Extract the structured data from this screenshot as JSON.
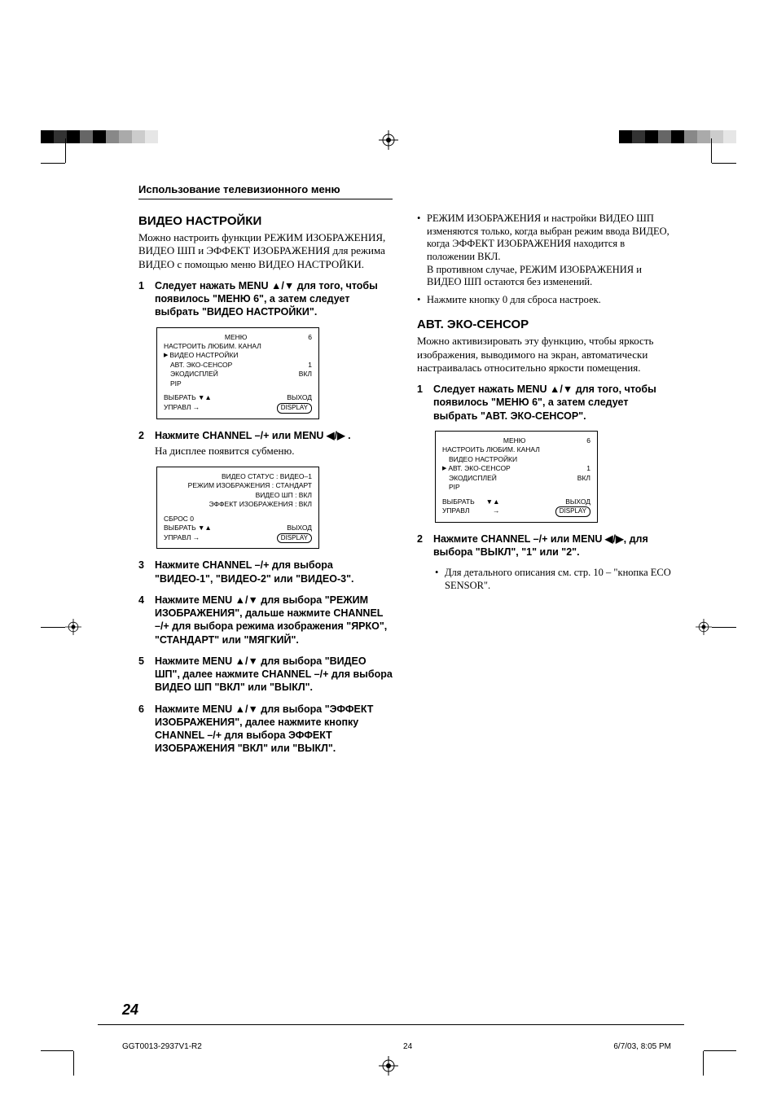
{
  "print_marks": {
    "left_bars": [
      "#000000",
      "#333333",
      "#000000",
      "#666666",
      "#000000",
      "#888888",
      "#aaaaaa",
      "#cccccc",
      "#e6e6e6"
    ],
    "right_bars": [
      "#000000",
      "#333333",
      "#000000",
      "#666666",
      "#000000",
      "#888888",
      "#aaaaaa",
      "#cccccc",
      "#e6e6e6"
    ]
  },
  "header": "Использование телевизионного меню",
  "left_col": {
    "heading": "ВИДЕО НАСТРОЙКИ",
    "intro": "Можно настроить функции РЕЖИМ ИЗОБРАЖЕНИЯ, ВИДЕО ШП и ЭФФЕКТ ИЗОБРАЖЕНИЯ для режима ВИДЕО с помощью меню ВИДЕО НАСТРОЙКИ.",
    "steps": {
      "1": "Следует нажать MENU ▲/▼ для того, чтобы появилось \"МЕНЮ 6\", а затем следует выбрать \"ВИДЕО НАСТРОЙКИ\".",
      "2": "Нажмите CHANNEL –/+ или MENU ◀/▶ .",
      "2_sub": "На дисплее появится субменю.",
      "3": "Нажмите CHANNEL –/+ для выбора \"ВИДЕО-1\", \"ВИДЕО-2\" или \"ВИДЕО-3\".",
      "4": "Нажмите MENU ▲/▼ для выбора \"РЕЖИМ ИЗОБРАЖЕНИЯ\", дальше нажмите CHANNEL –/+ для выбора режима изображения \"ЯРКО\", \"СТАНДАРТ\" или \"МЯГКИЙ\".",
      "5": "Нажмите MENU ▲/▼ для выбора \"ВИДЕО ШП\", далее нажмите CHANNEL –/+ для выбора ВИДЕО ШП \"ВКЛ\" или \"ВЫКЛ\".",
      "6": "Нажмите MENU ▲/▼ для выбора \"ЭФФЕКТ ИЗОБРАЖЕНИЯ\", далее нажмите кнопку CHANNEL –/+ для выбора ЭФФЕКТ ИЗОБРАЖЕНИЯ \"ВКЛ\" или \"ВЫКЛ\"."
    },
    "osd1": {
      "title": "МЕНЮ",
      "title_num": "6",
      "lines": [
        {
          "label": "НАСТРОИТЬ ЛЮБИМ. КАНАЛ",
          "value": "",
          "pointer": false
        },
        {
          "label": "ВИДЕО НАСТРОЙКИ",
          "value": "",
          "pointer": true
        },
        {
          "label": "АВТ. ЭКО-СЕНСОР",
          "value": "1",
          "pointer": false,
          "indent": true
        },
        {
          "label": "ЭКОДИСПЛЕЙ",
          "value": "ВКЛ",
          "pointer": false,
          "indent": true
        },
        {
          "label": "PIP",
          "value": "",
          "pointer": false,
          "indent": true
        }
      ],
      "footer": {
        "select": "ВЫБРАТЬ ▼▲",
        "exit": "ВЫХОД",
        "ctrl": "УПРАВЛ   →",
        "display": "DISPLAY"
      }
    },
    "osd2": {
      "lines": [
        {
          "label": "ВИДЕО СТАТУС",
          "value": "ВИДЕО–1",
          "pointer": false,
          "align": "right"
        },
        {
          "label": "РЕЖИМ ИЗОБРАЖЕНИЯ",
          "value": "СТАНДАРТ",
          "pointer": false,
          "align": "right"
        },
        {
          "label": "ВИДЕО ШП",
          "value": "ВКЛ",
          "pointer": false,
          "align": "right"
        },
        {
          "label": "ЭФФЕКТ ИЗОБРАЖЕНИЯ",
          "value": "ВКЛ",
          "pointer": false,
          "align": "right"
        }
      ],
      "footer": {
        "reset": "СБРОС      0",
        "select": "ВЫБРАТЬ ▼▲",
        "exit": "ВЫХОД",
        "ctrl": "УПРАВЛ    →",
        "display": "DISPLAY"
      }
    }
  },
  "right_col": {
    "bullets_top": [
      "РЕЖИМ ИЗОБРАЖЕНИЯ и настройки ВИДЕО ШП изменяются только, когда выбран режим ввода ВИДЕО, когда ЭФФЕКТ ИЗОБРАЖЕНИЯ находится в положении ВКЛ.\nВ противном случае, РЕЖИМ ИЗОБРАЖЕНИЯ и ВИДЕО ШП остаются без изменений.",
      "Нажмите кнопку 0 для сброса настроек."
    ],
    "heading": "АВТ. ЭКО-СЕНСОР",
    "intro": "Можно активизировать эту функцию, чтобы яркость изображения, выводимого на экран, автоматически настраивалась относительно яркости помещения.",
    "steps": {
      "1": "Следует нажать MENU ▲/▼ для того, чтобы появилось \"МЕНЮ 6\", а затем следует выбрать \"АВТ. ЭКО-СЕНСОР\".",
      "2": "Нажмите CHANNEL –/+ или MENU ◀/▶, для выбора \"ВЫКЛ\", \"1\" или \"2\"."
    },
    "bullets_bottom": [
      "Для детального описания см. стр. 10 – \"кнопка ECO SENSOR\"."
    ],
    "osd1": {
      "title": "МЕНЮ",
      "title_num": "6",
      "lines": [
        {
          "label": "НАСТРОИТЬ ЛЮБИМ. КАНАЛ",
          "value": "",
          "pointer": false
        },
        {
          "label": "ВИДЕО НАСТРОЙКИ",
          "value": "",
          "pointer": false,
          "indent": true
        },
        {
          "label": "АВТ. ЭКО-СЕНСОР",
          "value": "1",
          "pointer": true
        },
        {
          "label": "ЭКОДИСПЛЕЙ",
          "value": "ВКЛ",
          "pointer": false,
          "indent": true
        },
        {
          "label": "PIP",
          "value": "",
          "pointer": false,
          "indent": true
        }
      ],
      "footer": {
        "select": "ВЫБРАТЬ",
        "select_sym": "▼▲",
        "exit": "ВЫХОД",
        "ctrl": "УПРАВЛ",
        "ctrl_sym": "→",
        "display": "DISPLAY"
      }
    }
  },
  "page_number": "24",
  "footer": {
    "doc_id": "GGT0013-2937V1-R2",
    "page": "24",
    "timestamp": "6/7/03, 8:05 PM"
  }
}
